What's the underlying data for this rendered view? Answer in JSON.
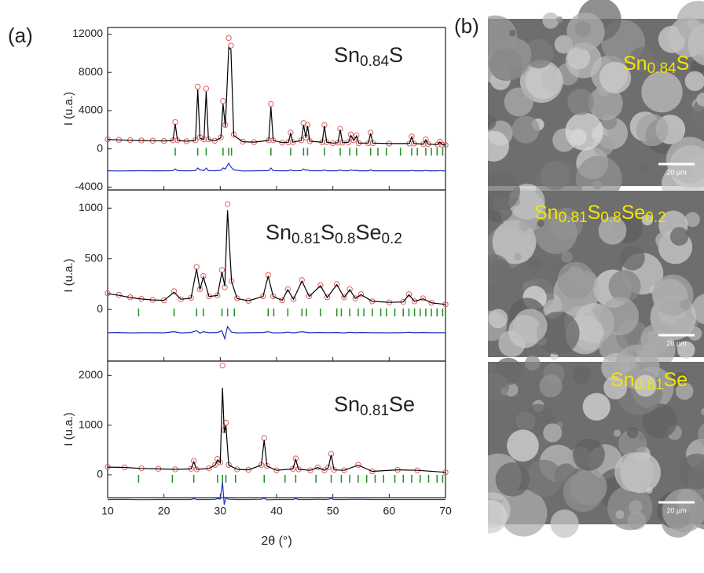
{
  "panel_labels": [
    "(a)",
    "(b)"
  ],
  "chart_data": [
    {
      "type": "scatter",
      "annotation_parts": [
        "Sn",
        "0.84",
        "S"
      ],
      "ylabel": "I (u.a.)",
      "ylim": [
        -4300,
        12700
      ],
      "yticks": [
        -4000,
        0,
        4000,
        8000,
        12000
      ],
      "x": [
        10,
        12,
        14,
        16,
        18,
        20,
        21.6,
        22,
        22.4,
        24,
        25.6,
        26,
        26.4,
        27.1,
        27.5,
        27.9,
        29,
        30.1,
        30.5,
        30.9,
        31.5,
        31.9,
        32.4,
        34,
        36,
        38.6,
        39,
        39.4,
        41,
        42.1,
        42.5,
        42.9,
        44.4,
        44.8,
        45.2,
        45.5,
        45.9,
        48.1,
        48.5,
        48.9,
        50,
        50.9,
        51.3,
        51.7,
        52.8,
        53.2,
        53.7,
        54.2,
        54.6,
        56.3,
        56.7,
        57.1,
        60,
        63.6,
        64,
        64.4,
        66.1,
        66.5,
        66.9,
        68.6,
        69,
        69.4,
        70
      ],
      "series": [
        {
          "color": "#e06060",
          "marker": "circle",
          "values": [
            1000,
            950,
            900,
            880,
            850,
            830,
            900,
            2800,
            900,
            800,
            900,
            6500,
            1200,
            1000,
            6300,
            1000,
            850,
            1200,
            5000,
            2500,
            11600,
            10800,
            1500,
            750,
            700,
            900,
            4700,
            900,
            650,
            700,
            1700,
            700,
            900,
            2700,
            1200,
            2500,
            800,
            700,
            2500,
            700,
            600,
            650,
            2100,
            650,
            700,
            1500,
            900,
            1400,
            600,
            600,
            1700,
            600,
            550,
            550,
            1300,
            550,
            500,
            1000,
            500,
            450,
            750,
            450,
            400
          ]
        },
        {
          "color": "#000000",
          "marker": "line",
          "values": [
            980,
            940,
            900,
            870,
            850,
            830,
            880,
            2600,
            880,
            800,
            880,
            6200,
            1100,
            980,
            6000,
            980,
            840,
            1150,
            4700,
            2300,
            10600,
            10400,
            1400,
            740,
            700,
            880,
            4400,
            880,
            650,
            690,
            1600,
            690,
            880,
            2500,
            1150,
            2400,
            790,
            690,
            2400,
            690,
            600,
            640,
            2000,
            640,
            690,
            1400,
            880,
            1350,
            600,
            600,
            1600,
            600,
            550,
            550,
            1250,
            550,
            500,
            950,
            500,
            450,
            720,
            450,
            400
          ]
        },
        {
          "color": "#1f2fbf",
          "marker": "line",
          "values": [
            -2300,
            -2310,
            -2300,
            -2290,
            -2300,
            -2300,
            -2280,
            -2100,
            -2280,
            -2300,
            -2280,
            -2000,
            -2200,
            -2280,
            -2000,
            -2280,
            -2290,
            -2250,
            -2000,
            -2100,
            -1500,
            -1900,
            -2200,
            -2310,
            -2300,
            -2280,
            -2000,
            -2280,
            -2300,
            -2290,
            -2200,
            -2290,
            -2280,
            -2100,
            -2250,
            -2200,
            -2290,
            -2290,
            -2200,
            -2290,
            -2300,
            -2290,
            -2200,
            -2290,
            -2290,
            -2200,
            -2280,
            -2250,
            -2300,
            -2300,
            -2200,
            -2300,
            -2300,
            -2300,
            -2250,
            -2300,
            -2300,
            -2250,
            -2300,
            -2300,
            -2270,
            -2300,
            -2300
          ]
        }
      ],
      "reflections": {
        "color": "#1f8f1f",
        "y": -300,
        "x": [
          22,
          26,
          27.5,
          30.5,
          31.5,
          32,
          39,
          42.5,
          44.8,
          45.5,
          48.5,
          51.3,
          53,
          54.2,
          56.7,
          58,
          59.5,
          62,
          64,
          65,
          66.5,
          67.5,
          68.5,
          69.5
        ]
      }
    },
    {
      "type": "scatter",
      "annotation_parts": [
        "Sn",
        "0.81",
        "S",
        "0.8",
        "Se",
        "0.2"
      ],
      "ylabel": "I (u.a.)",
      "ylim": [
        -510,
        1180
      ],
      "yticks": [
        0,
        500,
        1000
      ],
      "x": [
        10,
        12,
        14,
        16,
        18,
        20,
        21.8,
        23,
        24.8,
        25.8,
        26.4,
        27,
        28,
        29.5,
        30.3,
        30.8,
        31.3,
        32,
        33,
        35,
        37.6,
        38.5,
        39.4,
        41,
        42,
        43,
        44.5,
        45.8,
        47.8,
        49,
        50.7,
        52,
        53,
        54,
        55,
        57,
        60,
        62.5,
        63.5,
        64.5,
        66,
        67.5,
        70
      ],
      "series": [
        {
          "color": "#e06060",
          "marker": "circle",
          "values": [
            160,
            145,
            120,
            105,
            95,
            90,
            180,
            100,
            115,
            420,
            200,
            330,
            130,
            140,
            390,
            220,
            1040,
            280,
            110,
            85,
            130,
            340,
            130,
            90,
            200,
            100,
            290,
            130,
            240,
            120,
            250,
            120,
            200,
            110,
            150,
            80,
            70,
            75,
            150,
            80,
            110,
            65,
            50
          ]
        },
        {
          "color": "#000000",
          "marker": "line",
          "values": [
            155,
            140,
            118,
            103,
            94,
            90,
            170,
            100,
            112,
            400,
            195,
            320,
            128,
            138,
            370,
            230,
            980,
            275,
            108,
            85,
            128,
            330,
            128,
            90,
            195,
            100,
            280,
            128,
            235,
            118,
            245,
            118,
            195,
            108,
            145,
            80,
            70,
            74,
            145,
            80,
            105,
            65,
            50
          ]
        },
        {
          "color": "#1f2fbf",
          "marker": "line",
          "values": [
            -230,
            -228,
            -232,
            -230,
            -230,
            -231,
            -220,
            -232,
            -228,
            -210,
            -235,
            -220,
            -230,
            -228,
            -210,
            -290,
            -170,
            -225,
            -232,
            -230,
            -228,
            -220,
            -232,
            -230,
            -225,
            -232,
            -220,
            -230,
            -228,
            -230,
            -228,
            -232,
            -226,
            -230,
            -228,
            -230,
            -231,
            -229,
            -226,
            -230,
            -228,
            -230,
            -230
          ]
        }
      ],
      "reflections": {
        "color": "#1f8f1f",
        "y": -30,
        "x": [
          15.5,
          21.8,
          25.8,
          27,
          30.3,
          31.3,
          32.5,
          38.5,
          39.5,
          42,
          44.5,
          45.3,
          47.8,
          50.7,
          51.5,
          53,
          54.5,
          55.5,
          57,
          58.5,
          59.5,
          61,
          62.5,
          63.5,
          64.5,
          65.5,
          66.5,
          67.5,
          68.5,
          69.5
        ]
      }
    },
    {
      "type": "scatter",
      "annotation_parts": [
        "Sn",
        "0.81",
        "Se"
      ],
      "ylabel": "I (u.a.)",
      "xlabel": "2θ (°)",
      "xlim": [
        10,
        70
      ],
      "xticks": [
        10,
        20,
        30,
        40,
        50,
        60,
        70
      ],
      "ylim": [
        -460,
        2290
      ],
      "yticks": [
        0,
        1000,
        2000
      ],
      "x": [
        10,
        13,
        16,
        19,
        22,
        24.8,
        25.3,
        25.8,
        28,
        29.1,
        29.5,
        30,
        30.4,
        30.7,
        31,
        31.5,
        33,
        35,
        37.3,
        37.8,
        38.3,
        40,
        42.9,
        43.4,
        43.9,
        46,
        47.3,
        48.5,
        49.2,
        49.7,
        50.2,
        52,
        54.5,
        57,
        61.5,
        65,
        70
      ],
      "series": [
        {
          "color": "#e06060",
          "marker": "circle",
          "values": [
            160,
            150,
            130,
            120,
            110,
            120,
            280,
            110,
            130,
            200,
            320,
            250,
            2200,
            900,
            1050,
            200,
            110,
            100,
            200,
            740,
            180,
            90,
            120,
            330,
            110,
            90,
            150,
            90,
            150,
            420,
            100,
            90,
            200,
            70,
            100,
            90,
            50
          ]
        },
        {
          "color": "#000000",
          "marker": "line",
          "values": [
            155,
            148,
            128,
            118,
            110,
            118,
            260,
            110,
            128,
            195,
            300,
            240,
            1750,
            850,
            1000,
            195,
            110,
            100,
            195,
            700,
            175,
            90,
            118,
            310,
            110,
            90,
            145,
            90,
            145,
            400,
            100,
            90,
            195,
            70,
            100,
            90,
            50
          ]
        },
        {
          "color": "#1f2fbf",
          "marker": "line",
          "values": [
            -500,
            -498,
            -502,
            -500,
            -500,
            -500,
            -480,
            -500,
            -500,
            -495,
            -480,
            -490,
            -150,
            -600,
            -460,
            -495,
            -500,
            -500,
            -495,
            -470,
            -505,
            -500,
            -500,
            -480,
            -500,
            -500,
            -495,
            -500,
            -495,
            -480,
            -500,
            -500,
            -495,
            -500,
            -500,
            -500,
            -500
          ]
        }
      ],
      "reflections": {
        "color": "#1f8f1f",
        "y": -80,
        "x": [
          15.5,
          21.5,
          25.3,
          29.5,
          30.4,
          31,
          32.7,
          37.8,
          41.5,
          43.4,
          47,
          49.7,
          51.5,
          53,
          54.5,
          56,
          57.5,
          59,
          61,
          62.5,
          64,
          65.5,
          67,
          68.5,
          69.5
        ]
      }
    }
  ],
  "sem_images": [
    {
      "label_parts": [
        "Sn",
        "0.84",
        "S"
      ],
      "scale_bar": "20 µm"
    },
    {
      "label_parts": [
        "Sn",
        "0.81",
        "S",
        "0.8",
        "Se",
        "0.2"
      ],
      "scale_bar": "20 µm"
    },
    {
      "label_parts": [
        "Sn",
        "0.81",
        "Se"
      ],
      "scale_bar": "20 µm"
    }
  ]
}
